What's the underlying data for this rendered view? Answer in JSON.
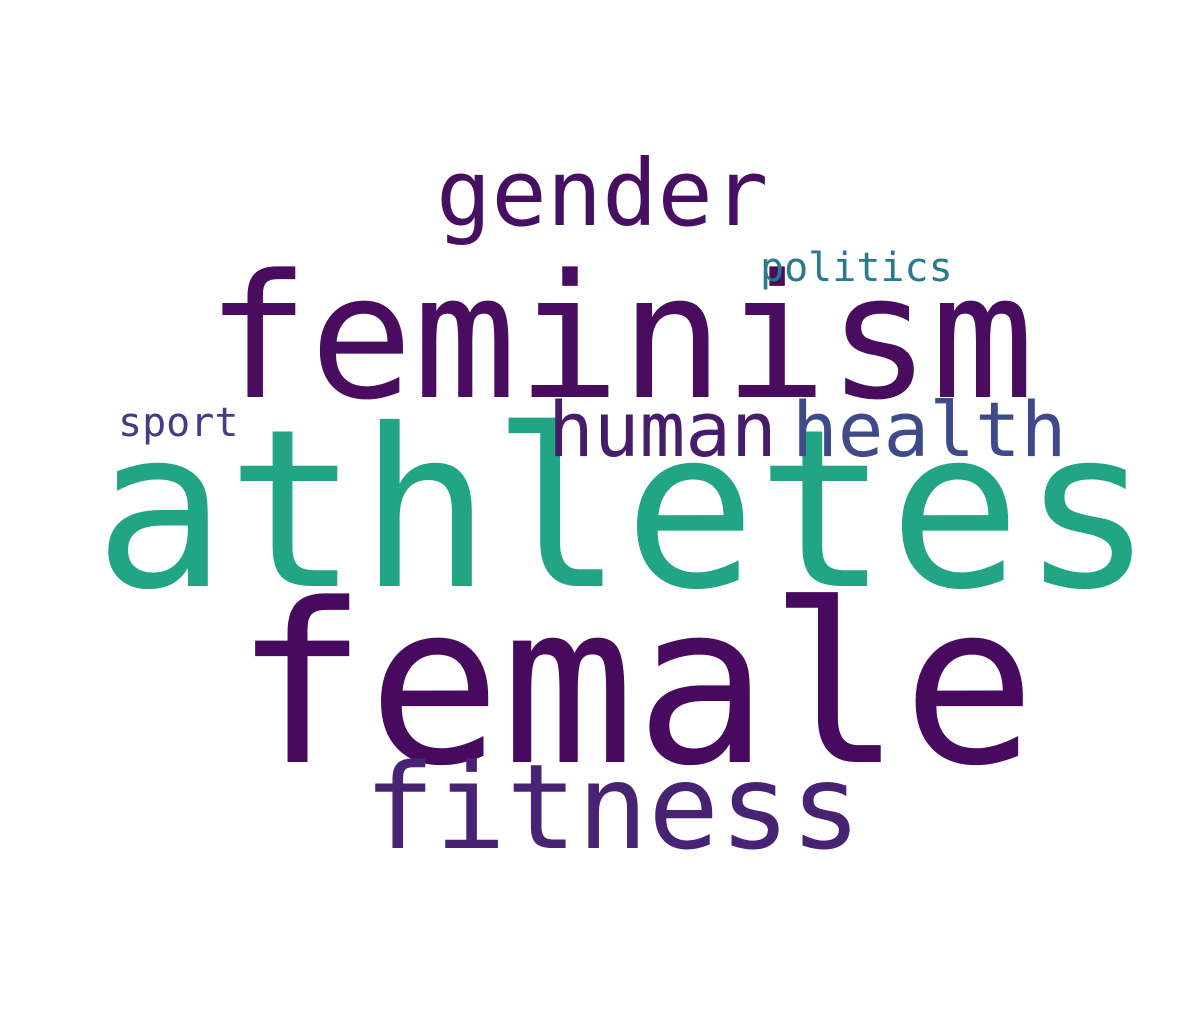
{
  "cloud": {
    "words": {
      "gender": {
        "text": "gender",
        "color": "#470F62"
      },
      "politics": {
        "text": "politics",
        "color": "#2A7A8C"
      },
      "feminism": {
        "text": "feminism",
        "color": "#4A0C5E"
      },
      "sport": {
        "text": "sport",
        "color": "#433D84"
      },
      "human": {
        "text": "human",
        "color": "#461C6B"
      },
      "health": {
        "text": "health",
        "color": "#3F4A8A"
      },
      "athletes": {
        "text": "athletes",
        "color": "#21A585"
      },
      "female": {
        "text": "female",
        "color": "#470A5E"
      },
      "fitness": {
        "text": "fitness",
        "color": "#482374"
      }
    }
  }
}
